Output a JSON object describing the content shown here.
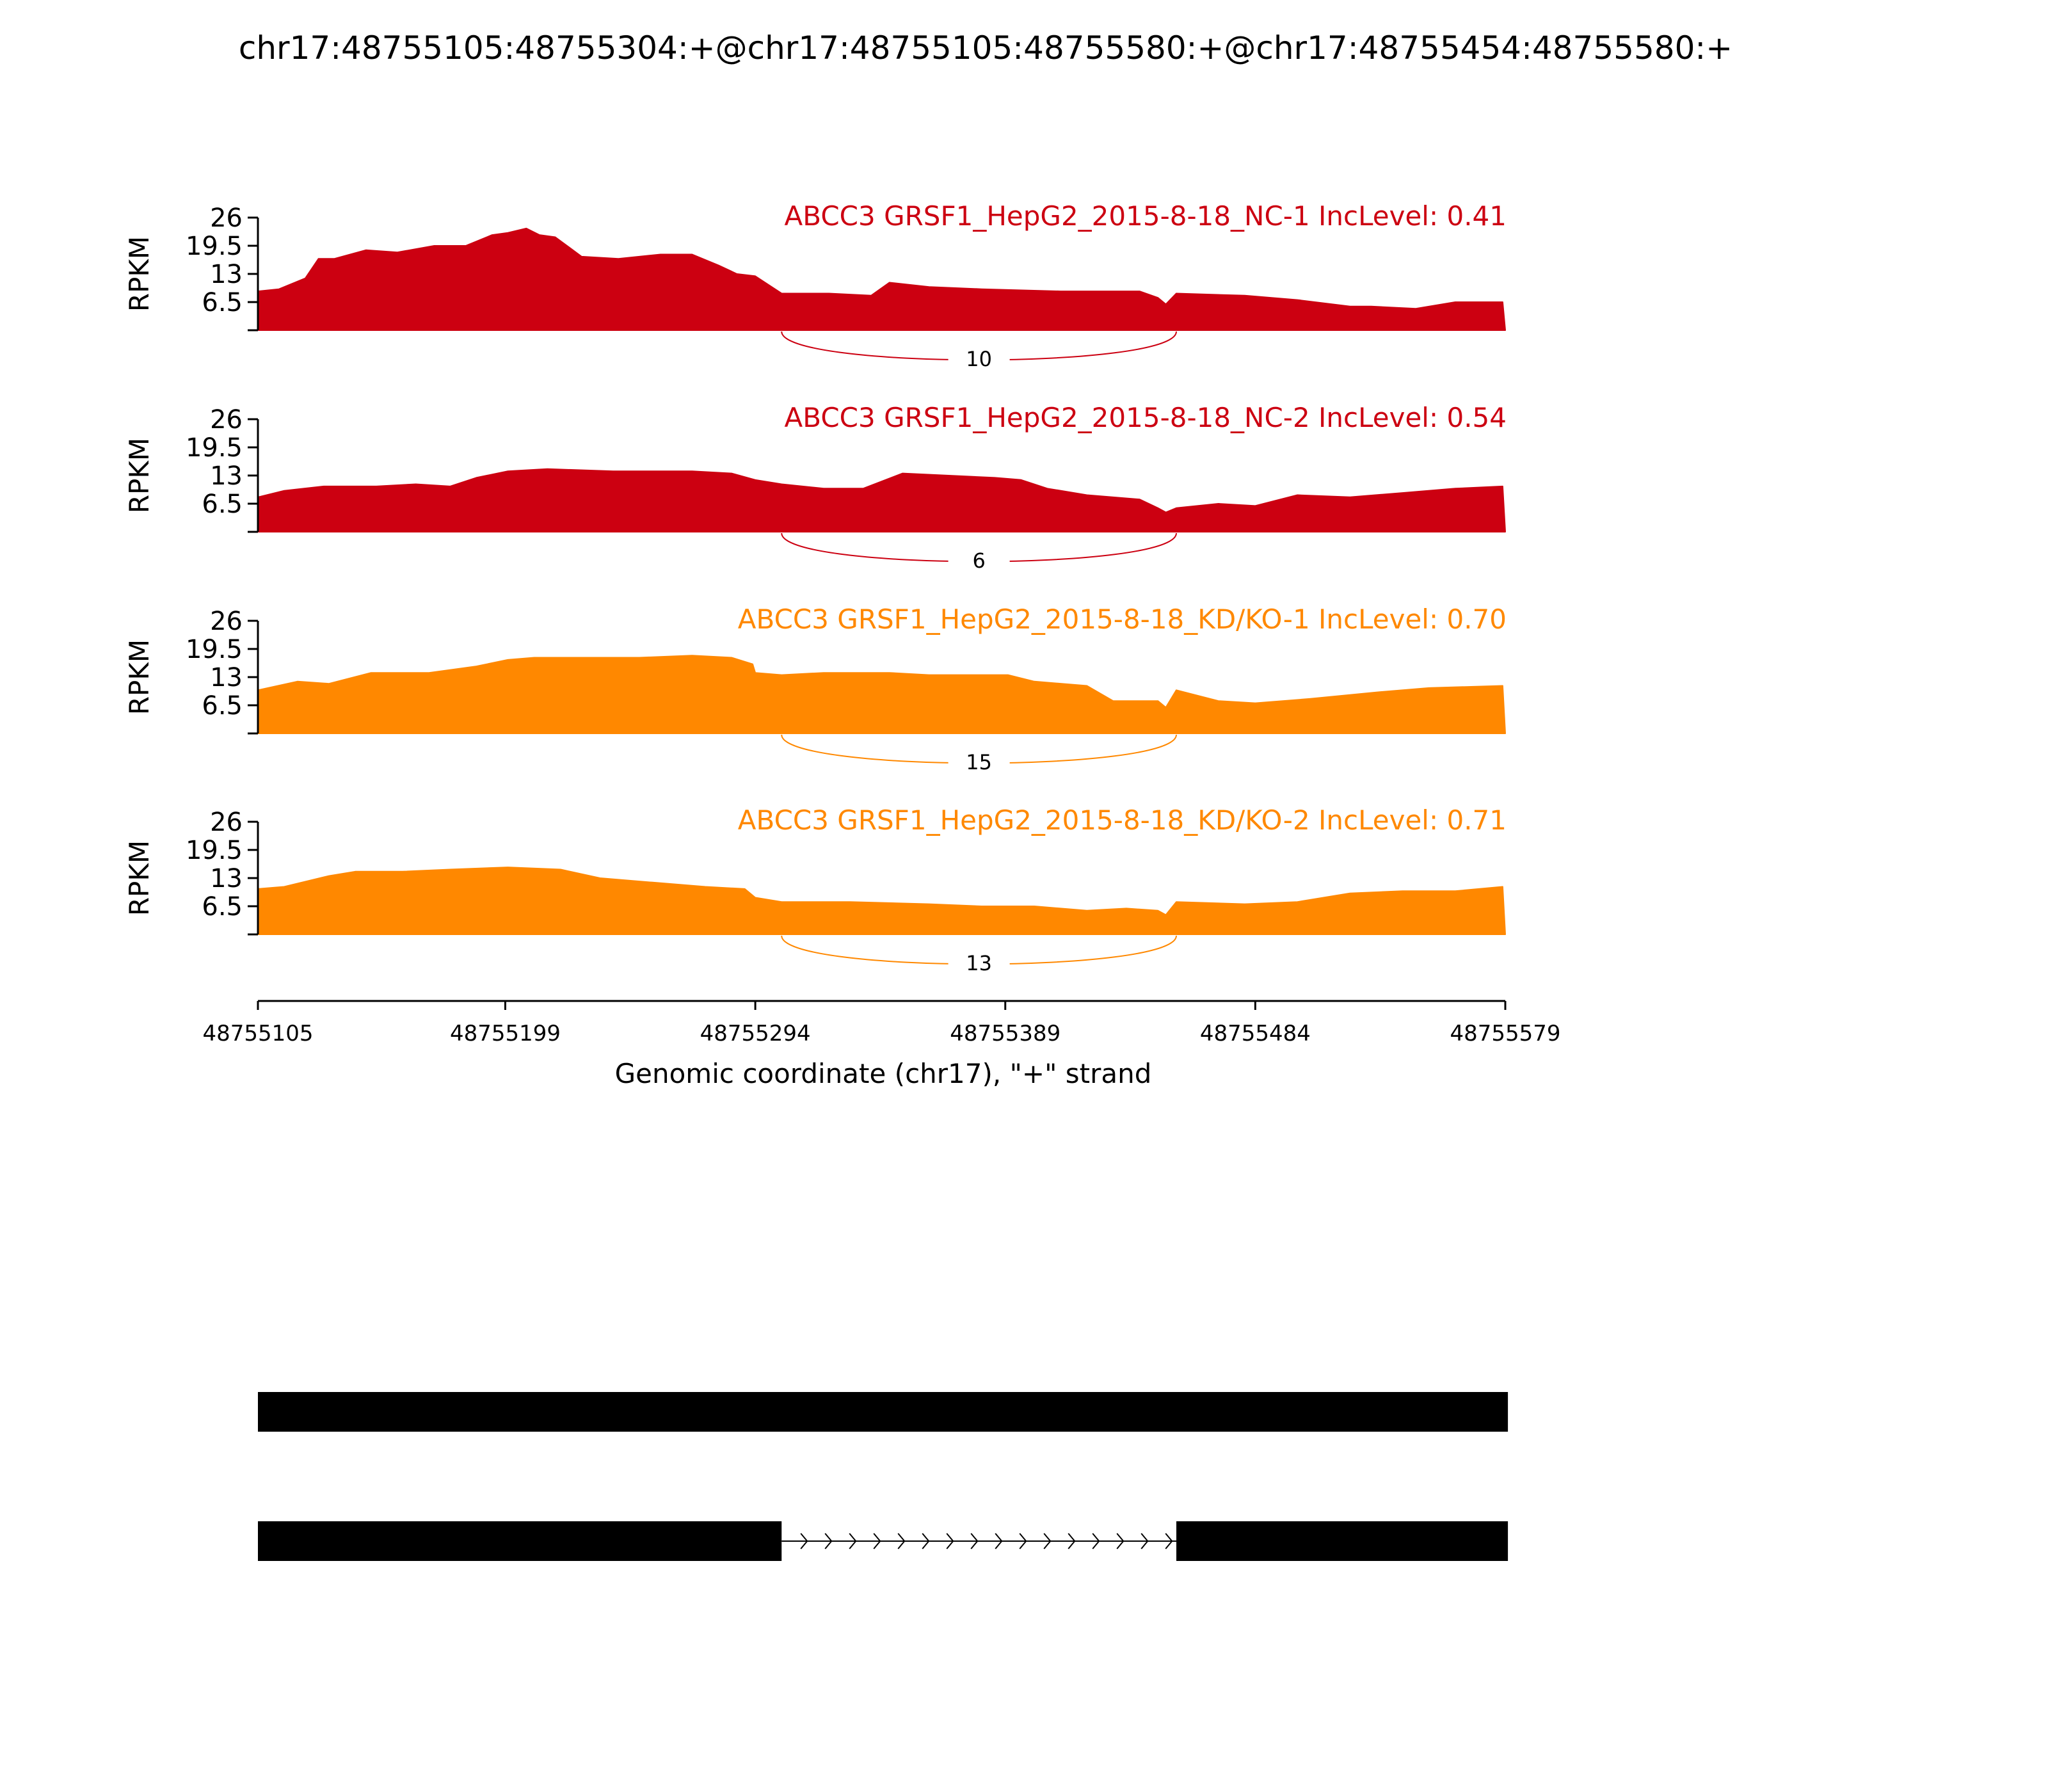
{
  "chart_data": {
    "type": "area",
    "title": "chr17:48755105:48755304:+@chr17:48755105:48755580:+@chr17:48755454:48755580:+",
    "xlabel": "Genomic coordinate (chr17), \"+\" strand",
    "ylabel": "RPKM",
    "xlim": [
      48755105,
      48755579
    ],
    "ylim": [
      0,
      26
    ],
    "yticks": [
      6.5,
      13,
      19.5,
      26
    ],
    "xticks": [
      48755105,
      48755199,
      48755294,
      48755389,
      48755484,
      48755579
    ],
    "colors": {
      "NC": "#cc0011",
      "KD": "#ff8800"
    },
    "junction": {
      "start": 48755304,
      "end": 48755454
    },
    "series": [
      {
        "name": "ABCC3 GRSF1_HepG2_2015-8-18_NC-1 IncLevel: 0.41",
        "color": "#cc0011",
        "junction_count": "10",
        "x": [
          48755105,
          48755113,
          48755123,
          48755128,
          48755134,
          48755146,
          48755158,
          48755172,
          48755184,
          48755194,
          48755200,
          48755207,
          48755212,
          48755218,
          48755228,
          48755242,
          48755258,
          48755270,
          48755280,
          48755287,
          48755294,
          48755304,
          48755322,
          48755338,
          48755345,
          48755360,
          48755380,
          48755410,
          48755440,
          48755447,
          48755450,
          48755454,
          48755480,
          48755500,
          48755520,
          48755528,
          48755545,
          48755560,
          48755578,
          48755579
        ],
        "y": [
          9.0,
          9.5,
          12.0,
          16.5,
          16.5,
          18.5,
          18.0,
          19.5,
          19.5,
          22.0,
          22.5,
          23.5,
          22.0,
          21.5,
          17.0,
          16.5,
          17.5,
          17.5,
          15.0,
          13.0,
          12.5,
          8.5,
          8.5,
          8.0,
          11.0,
          10.0,
          9.5,
          9.0,
          9.0,
          7.5,
          6.0,
          8.5,
          8.0,
          7.0,
          5.5,
          5.5,
          5.0,
          6.5,
          6.5,
          0
        ]
      },
      {
        "name": "ABCC3 GRSF1_HepG2_2015-8-18_NC-2 IncLevel: 0.54",
        "color": "#cc0011",
        "junction_count": "6",
        "x": [
          48755105,
          48755115,
          48755130,
          48755150,
          48755165,
          48755178,
          48755188,
          48755200,
          48755215,
          48755240,
          48755270,
          48755285,
          48755294,
          48755304,
          48755320,
          48755335,
          48755350,
          48755385,
          48755395,
          48755405,
          48755420,
          48755440,
          48755447,
          48755450,
          48755454,
          48755470,
          48755484,
          48755500,
          48755520,
          48755540,
          48755560,
          48755578,
          48755579
        ],
        "y": [
          8.0,
          9.5,
          10.5,
          10.5,
          11.0,
          10.5,
          12.5,
          14.0,
          14.5,
          14.0,
          14.0,
          13.5,
          12.0,
          11.0,
          10.0,
          10.0,
          13.5,
          12.5,
          12.0,
          10.0,
          8.5,
          7.5,
          5.5,
          4.5,
          5.5,
          6.5,
          6.0,
          8.5,
          8.0,
          9.0,
          10.0,
          10.5,
          0
        ]
      },
      {
        "name": "ABCC3 GRSF1_HepG2_2015-8-18_KD/KO-1 IncLevel: 0.70",
        "color": "#ff8800",
        "junction_count": "15",
        "x": [
          48755105,
          48755120,
          48755132,
          48755148,
          48755170,
          48755188,
          48755200,
          48755210,
          48755230,
          48755250,
          48755270,
          48755285,
          48755293,
          48755294,
          48755304,
          48755320,
          48755345,
          48755360,
          48755390,
          48755400,
          48755420,
          48755430,
          48755447,
          48755450,
          48755454,
          48755470,
          48755484,
          48755505,
          48755530,
          48755550,
          48755578,
          48755579
        ],
        "y": [
          10.0,
          12.0,
          11.5,
          14.0,
          14.0,
          15.5,
          17.0,
          17.5,
          17.5,
          17.5,
          18.0,
          17.5,
          16.0,
          14.0,
          13.5,
          14.0,
          14.0,
          13.5,
          13.5,
          12.0,
          11.0,
          7.5,
          7.5,
          6.0,
          10.0,
          7.5,
          7.0,
          8.0,
          9.5,
          10.5,
          11.0,
          0
        ]
      },
      {
        "name": "ABCC3 GRSF1_HepG2_2015-8-18_KD/KO-2 IncLevel: 0.71",
        "color": "#ff8800",
        "junction_count": "13",
        "x": [
          48755105,
          48755115,
          48755132,
          48755142,
          48755160,
          48755178,
          48755200,
          48755220,
          48755235,
          48755255,
          48755275,
          48755290,
          48755294,
          48755304,
          48755330,
          48755360,
          48755380,
          48755400,
          48755420,
          48755435,
          48755447,
          48755450,
          48755454,
          48755480,
          48755500,
          48755520,
          48755540,
          48755560,
          48755578,
          48755579
        ],
        "y": [
          10.5,
          11.0,
          13.5,
          14.5,
          14.5,
          15.0,
          15.5,
          15.0,
          13.0,
          12.0,
          11.0,
          10.5,
          8.5,
          7.5,
          7.5,
          7.0,
          6.5,
          6.5,
          5.5,
          6.0,
          5.5,
          4.5,
          7.5,
          7.0,
          7.5,
          9.5,
          10.0,
          10.0,
          11.0,
          0
        ]
      }
    ],
    "gene_models": [
      {
        "exons": [
          [
            48755105,
            48755580
          ]
        ]
      },
      {
        "exons": [
          [
            48755105,
            48755304
          ],
          [
            48755454,
            48755580
          ]
        ]
      }
    ]
  }
}
